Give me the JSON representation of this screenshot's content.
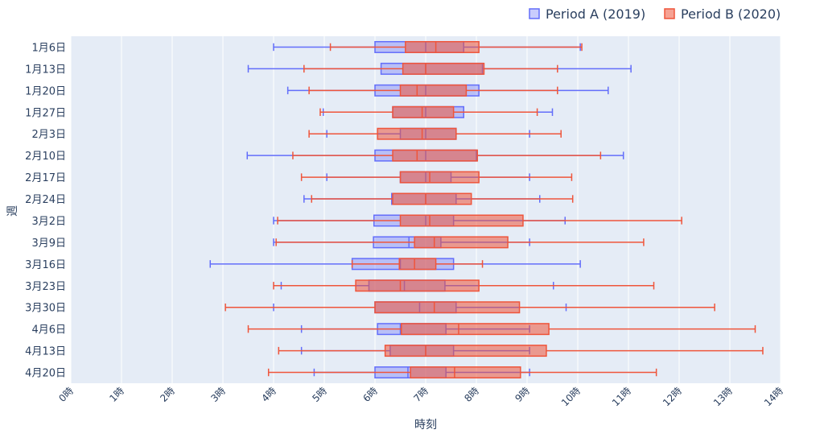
{
  "chart_data": {
    "type": "box",
    "orientation": "horizontal",
    "xlabel": "時刻",
    "ylabel": "週",
    "xlim": [
      0,
      14
    ],
    "x_ticks": [
      0,
      1,
      2,
      3,
      4,
      5,
      6,
      7,
      8,
      9,
      10,
      11,
      12,
      13,
      14
    ],
    "x_tick_suffix": "時",
    "grid": true,
    "legend_position": "top-right",
    "categories": [
      "1月6日",
      "1月13日",
      "1月20日",
      "1月27日",
      "2月3日",
      "2月10日",
      "2月17日",
      "2月24日",
      "3月2日",
      "3月9日",
      "3月16日",
      "3月23日",
      "3月30日",
      "4月6日",
      "4月13日",
      "4月20日"
    ],
    "series": [
      {
        "name": "Period A (2019)",
        "color": "#636efa",
        "fill": "rgba(99,110,250,0.35)",
        "boxes": [
          {
            "min": 4.0,
            "q1": 6.0,
            "median": 7.0,
            "q3": 7.75,
            "max": 10.05
          },
          {
            "min": 3.5,
            "q1": 6.12,
            "median": 7.0,
            "q3": 8.12,
            "max": 11.05
          },
          {
            "min": 4.28,
            "q1": 6.0,
            "median": 7.0,
            "q3": 8.05,
            "max": 10.6
          },
          {
            "min": 4.98,
            "q1": 6.35,
            "median": 7.0,
            "q3": 7.75,
            "max": 9.5
          },
          {
            "min": 5.05,
            "q1": 6.5,
            "median": 7.0,
            "q3": 7.6,
            "max": 9.05
          },
          {
            "min": 3.48,
            "q1": 6.0,
            "median": 7.0,
            "q3": 8.0,
            "max": 10.9
          },
          {
            "min": 5.05,
            "q1": 6.5,
            "median": 7.0,
            "q3": 7.5,
            "max": 9.05
          },
          {
            "min": 4.6,
            "q1": 6.33,
            "median": 7.0,
            "q3": 7.6,
            "max": 9.25
          },
          {
            "min": 4.0,
            "q1": 5.98,
            "median": 7.0,
            "q3": 7.55,
            "max": 9.75
          },
          {
            "min": 4.0,
            "q1": 5.97,
            "median": 6.67,
            "q3": 7.3,
            "max": 9.05
          },
          {
            "min": 2.75,
            "q1": 5.55,
            "median": 6.5,
            "q3": 7.55,
            "max": 10.05
          },
          {
            "min": 4.15,
            "q1": 5.88,
            "median": 6.58,
            "q3": 7.38,
            "max": 9.52
          },
          {
            "min": 4.0,
            "q1": 6.0,
            "median": 6.88,
            "q3": 7.6,
            "max": 9.77
          },
          {
            "min": 4.55,
            "q1": 6.05,
            "median": 6.5,
            "q3": 7.4,
            "max": 9.05
          },
          {
            "min": 4.55,
            "q1": 6.3,
            "median": 7.0,
            "q3": 7.55,
            "max": 9.05
          },
          {
            "min": 4.8,
            "q1": 6.0,
            "median": 6.65,
            "q3": 7.4,
            "max": 9.05
          }
        ]
      },
      {
        "name": "Period B (2020)",
        "color": "#ef553b",
        "fill": "rgba(239,85,59,0.55)",
        "boxes": [
          {
            "min": 5.12,
            "q1": 6.6,
            "median": 7.2,
            "q3": 8.05,
            "max": 10.08
          },
          {
            "min": 4.6,
            "q1": 6.55,
            "median": 7.0,
            "q3": 8.15,
            "max": 9.6
          },
          {
            "min": 4.7,
            "q1": 6.5,
            "median": 6.83,
            "q3": 7.8,
            "max": 9.6
          },
          {
            "min": 4.92,
            "q1": 6.35,
            "median": 6.93,
            "q3": 7.55,
            "max": 9.2
          },
          {
            "min": 4.7,
            "q1": 6.05,
            "median": 6.93,
            "q3": 7.6,
            "max": 9.67
          },
          {
            "min": 4.38,
            "q1": 6.35,
            "median": 6.83,
            "q3": 8.02,
            "max": 10.45
          },
          {
            "min": 4.55,
            "q1": 6.5,
            "median": 7.08,
            "q3": 8.05,
            "max": 9.88
          },
          {
            "min": 4.75,
            "q1": 6.35,
            "median": 7.0,
            "q3": 7.9,
            "max": 9.9
          },
          {
            "min": 4.08,
            "q1": 6.5,
            "median": 7.08,
            "q3": 8.92,
            "max": 12.05
          },
          {
            "min": 4.05,
            "q1": 6.78,
            "median": 7.17,
            "q3": 8.62,
            "max": 11.3
          },
          {
            "min": 5.55,
            "q1": 6.48,
            "median": 6.78,
            "q3": 7.2,
            "max": 8.12
          },
          {
            "min": 4.0,
            "q1": 5.62,
            "median": 6.5,
            "q3": 8.05,
            "max": 11.5
          },
          {
            "min": 3.05,
            "q1": 6.0,
            "median": 7.17,
            "q3": 8.85,
            "max": 12.7
          },
          {
            "min": 3.5,
            "q1": 6.52,
            "median": 7.65,
            "q3": 9.43,
            "max": 13.5
          },
          {
            "min": 4.1,
            "q1": 6.2,
            "median": 7.0,
            "q3": 9.38,
            "max": 13.65
          },
          {
            "min": 3.9,
            "q1": 6.7,
            "median": 7.57,
            "q3": 8.87,
            "max": 11.55
          }
        ]
      }
    ]
  }
}
